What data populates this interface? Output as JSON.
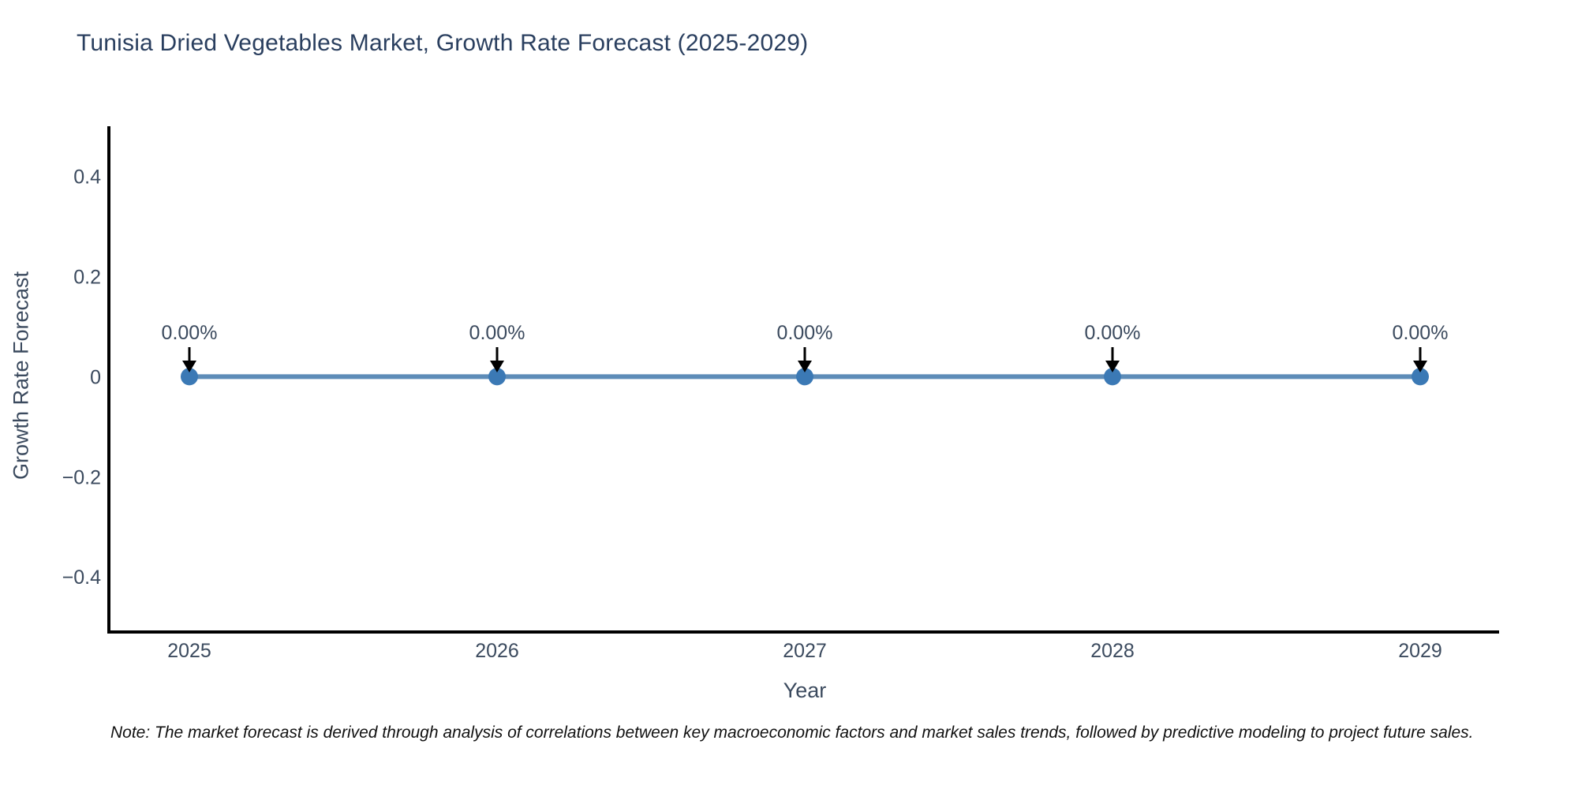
{
  "title": "Tunisia Dried Vegetables Market, Growth Rate Forecast (2025-2029)",
  "note": "Note: The market forecast is derived through analysis of correlations between key macroeconomic factors and market sales trends, followed by predictive modeling to project future sales.",
  "chart_data": {
    "type": "line",
    "x": [
      2025,
      2026,
      2027,
      2028,
      2029
    ],
    "xtick_labels": [
      "2025",
      "2026",
      "2027",
      "2028",
      "2029"
    ],
    "series": [
      {
        "name": "Growth Rate Forecast",
        "values": [
          0,
          0,
          0,
          0,
          0
        ]
      }
    ],
    "point_labels": [
      "0.00%",
      "0.00%",
      "0.00%",
      "0.00%",
      "0.00%"
    ],
    "title": "Tunisia Dried Vegetables Market, Growth Rate Forecast (2025-2029)",
    "xlabel": "Year",
    "ylabel": "Growth Rate Forecast",
    "yticks": [
      0.4,
      0.2,
      0,
      -0.2,
      -0.4
    ],
    "ytick_labels": [
      "0.4",
      "0.2",
      "0",
      "−0.2",
      "−0.4"
    ],
    "ylim": [
      -0.51,
      0.5
    ],
    "grid": false,
    "legend": "none",
    "annotation_style": "down-arrow",
    "colors": {
      "line": "#5d8cb8",
      "marker": "#3b79b5",
      "spine": "#000000",
      "arrow": "#000000",
      "title_text": "#2a3f5f",
      "axis_text": "#3b4a5e",
      "note_text": "#111111",
      "background": "#ffffff"
    }
  }
}
